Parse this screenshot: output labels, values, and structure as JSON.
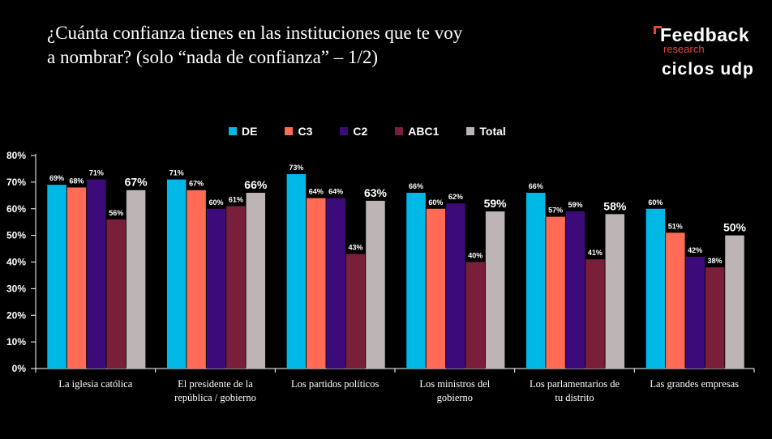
{
  "title_line1": "¿Cuánta confianza tienes en las instituciones que te voy",
  "title_line2": "a nombrar? (solo “nada de confianza” – 1/2)",
  "brand": {
    "name": "Feedback",
    "sub": "research",
    "partner": "ciclos udp"
  },
  "colors": {
    "DE": "#00b8e6",
    "C3": "#ff6b55",
    "C2": "#3d0a7a",
    "ABC1": "#7a1f3a",
    "Total": "#bdb5b5"
  },
  "chart_data": {
    "type": "bar",
    "title": "¿Cuánta confianza tienes en las instituciones que te voy a nombrar? (solo “nada de confianza” – 1/2)",
    "xlabel": "",
    "ylabel": "",
    "ylim": [
      0,
      80
    ],
    "yticks": [
      "0%",
      "10%",
      "20%",
      "30%",
      "40%",
      "50%",
      "60%",
      "70%",
      "80%"
    ],
    "legend_position": "top",
    "grid": false,
    "categories": [
      [
        "La iglesia católica"
      ],
      [
        "El presidente de la",
        "república / gobierno"
      ],
      [
        "Los partidos políticos"
      ],
      [
        "Los ministros del",
        "gobierno"
      ],
      [
        "Los parlamentarios de",
        "tu distrito"
      ],
      [
        "Las grandes empresas"
      ]
    ],
    "series": [
      {
        "name": "DE",
        "values": [
          69,
          71,
          73,
          66,
          66,
          60
        ]
      },
      {
        "name": "C3",
        "values": [
          68,
          67,
          64,
          60,
          57,
          51
        ]
      },
      {
        "name": "C2",
        "values": [
          71,
          60,
          64,
          62,
          59,
          42
        ]
      },
      {
        "name": "ABC1",
        "values": [
          56,
          61,
          43,
          40,
          41,
          38
        ]
      },
      {
        "name": "Total",
        "values": [
          67,
          66,
          63,
          59,
          58,
          50
        ]
      }
    ]
  }
}
